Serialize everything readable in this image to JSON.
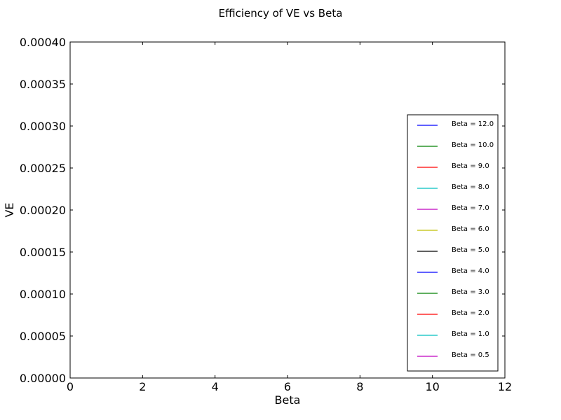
{
  "chart_data": {
    "type": "line",
    "title": "Efficiency of VE vs Beta",
    "xlabel": "Beta",
    "ylabel": "VE",
    "xlim": [
      0,
      12
    ],
    "ylim": [
      0,
      0.0004
    ],
    "x_ticks": [
      "0",
      "2",
      "4",
      "6",
      "8",
      "10",
      "12"
    ],
    "y_ticks": [
      "0.00000",
      "0.00005",
      "0.00010",
      "0.00015",
      "0.00020",
      "0.00025",
      "0.00030",
      "0.00035",
      "0.00040"
    ],
    "grid": false,
    "legend_position": "right",
    "series": [
      {
        "name": "Beta = 12.0",
        "color": "#0000ff",
        "values": []
      },
      {
        "name": "Beta = 10.0",
        "color": "#008000",
        "values": []
      },
      {
        "name": "Beta = 9.0",
        "color": "#ff0000",
        "values": []
      },
      {
        "name": "Beta = 8.0",
        "color": "#00bfbf",
        "values": []
      },
      {
        "name": "Beta = 7.0",
        "color": "#bf00bf",
        "values": []
      },
      {
        "name": "Beta = 6.0",
        "color": "#bfbf00",
        "values": []
      },
      {
        "name": "Beta = 5.0",
        "color": "#000000",
        "values": []
      },
      {
        "name": "Beta = 4.0",
        "color": "#0000ff",
        "values": []
      },
      {
        "name": "Beta = 3.0",
        "color": "#008000",
        "values": []
      },
      {
        "name": "Beta = 2.0",
        "color": "#ff0000",
        "values": []
      },
      {
        "name": "Beta = 1.0",
        "color": "#00bfbf",
        "values": []
      },
      {
        "name": "Beta = 0.5",
        "color": "#bf00bf",
        "values": []
      }
    ]
  }
}
